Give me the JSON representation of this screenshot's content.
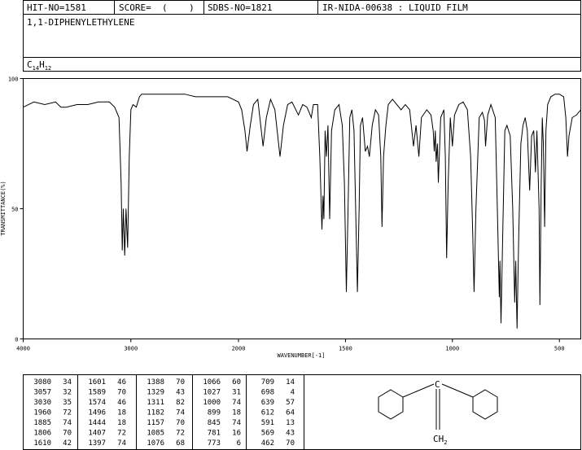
{
  "header": {
    "hit": "HIT-NO=1581",
    "score": "SCORE=  (    )",
    "sdbs": "SDBS-NO=1821",
    "method": "IR-NIDA-00638 : LIQUID FILM",
    "name": "1,1-DIPHENYLETHYLENE",
    "formula": [
      "C",
      "14",
      "H",
      "12"
    ]
  },
  "chart_data": {
    "type": "line",
    "x_label": "WAVENUMBER[-1]",
    "y_label": "TRANSMITTANCE(%)",
    "color": "#000000",
    "x_break": 2000,
    "xlim": [
      4000,
      400
    ],
    "xticks": [
      4000,
      3000,
      2000,
      1500,
      1000,
      500
    ],
    "ylim": [
      0,
      100
    ],
    "yticks": [
      0,
      50,
      100
    ],
    "series": [
      {
        "name": "spectrum",
        "color": "#000000",
        "x": [
          4000,
          3900,
          3800,
          3700,
          3650,
          3600,
          3500,
          3400,
          3300,
          3200,
          3150,
          3110,
          3090,
          3080,
          3070,
          3057,
          3045,
          3030,
          3015,
          3000,
          2980,
          2950,
          2920,
          2900,
          2800,
          2700,
          2600,
          2500,
          2400,
          2300,
          2200,
          2100,
          2050,
          2000,
          1985,
          1970,
          1960,
          1945,
          1930,
          1910,
          1885,
          1870,
          1850,
          1830,
          1806,
          1790,
          1770,
          1750,
          1720,
          1700,
          1680,
          1660,
          1650,
          1630,
          1620,
          1610,
          1605,
          1601,
          1595,
          1589,
          1582,
          1574,
          1565,
          1550,
          1530,
          1515,
          1505,
          1496,
          1488,
          1480,
          1470,
          1460,
          1444,
          1436,
          1430,
          1420,
          1407,
          1397,
          1388,
          1375,
          1360,
          1345,
          1335,
          1329,
          1322,
          1311,
          1300,
          1280,
          1260,
          1240,
          1220,
          1200,
          1182,
          1170,
          1157,
          1145,
          1120,
          1100,
          1090,
          1085,
          1080,
          1076,
          1070,
          1066,
          1055,
          1040,
          1033,
          1027,
          1020,
          1010,
          1000,
          990,
          970,
          950,
          930,
          915,
          905,
          899,
          890,
          875,
          860,
          850,
          845,
          835,
          820,
          800,
          790,
          781,
          778,
          773,
          765,
          755,
          745,
          730,
          718,
          709,
          704,
          698,
          690,
          680,
          670,
          660,
          650,
          639,
          630,
          620,
          612,
          605,
          595,
          591,
          585,
          580,
          575,
          569,
          563,
          555,
          540,
          520,
          500,
          480,
          470,
          462,
          455,
          440,
          420,
          400
        ],
        "values": [
          89,
          91,
          90,
          91,
          89,
          89,
          90,
          90,
          91,
          91,
          89,
          85,
          60,
          34,
          50,
          32,
          50,
          35,
          70,
          88,
          90,
          89,
          93,
          94,
          94,
          94,
          94,
          94,
          93,
          93,
          93,
          93,
          92,
          91,
          88,
          80,
          72,
          82,
          90,
          92,
          74,
          85,
          92,
          88,
          70,
          82,
          90,
          91,
          86,
          90,
          89,
          85,
          90,
          90,
          70,
          42,
          55,
          46,
          80,
          70,
          82,
          46,
          80,
          88,
          90,
          82,
          60,
          18,
          50,
          85,
          88,
          80,
          18,
          50,
          82,
          85,
          72,
          74,
          70,
          82,
          88,
          86,
          70,
          43,
          70,
          82,
          90,
          92,
          90,
          88,
          90,
          88,
          74,
          82,
          70,
          85,
          88,
          86,
          80,
          72,
          80,
          68,
          75,
          60,
          85,
          88,
          70,
          31,
          60,
          85,
          74,
          86,
          90,
          91,
          88,
          70,
          40,
          18,
          50,
          85,
          87,
          84,
          74,
          86,
          90,
          85,
          50,
          16,
          30,
          6,
          40,
          80,
          82,
          78,
          50,
          14,
          30,
          4,
          40,
          75,
          82,
          85,
          80,
          57,
          78,
          80,
          64,
          80,
          50,
          13,
          60,
          85,
          75,
          43,
          80,
          90,
          93,
          94,
          94,
          93,
          85,
          70,
          78,
          85,
          86,
          88
        ]
      }
    ]
  },
  "peak_table": [
    [
      [
        3080,
        34
      ],
      [
        3057,
        32
      ],
      [
        3030,
        35
      ],
      [
        1960,
        72
      ],
      [
        1885,
        74
      ],
      [
        1806,
        70
      ],
      [
        1610,
        42
      ]
    ],
    [
      [
        1601,
        46
      ],
      [
        1589,
        70
      ],
      [
        1574,
        46
      ],
      [
        1496,
        18
      ],
      [
        1444,
        18
      ],
      [
        1407,
        72
      ],
      [
        1397,
        74
      ]
    ],
    [
      [
        1388,
        70
      ],
      [
        1329,
        43
      ],
      [
        1311,
        82
      ],
      [
        1182,
        74
      ],
      [
        1157,
        70
      ],
      [
        1085,
        72
      ],
      [
        1076,
        68
      ]
    ],
    [
      [
        1066,
        60
      ],
      [
        1027,
        31
      ],
      [
        1000,
        74
      ],
      [
        899,
        18
      ],
      [
        845,
        74
      ],
      [
        781,
        16
      ],
      [
        773,
        6
      ]
    ],
    [
      [
        709,
        14
      ],
      [
        698,
        4
      ],
      [
        639,
        57
      ],
      [
        612,
        64
      ],
      [
        591,
        13
      ],
      [
        569,
        43
      ],
      [
        462,
        70
      ]
    ]
  ],
  "structure": {
    "atom": "C",
    "label": "CH",
    "sub": "2"
  }
}
